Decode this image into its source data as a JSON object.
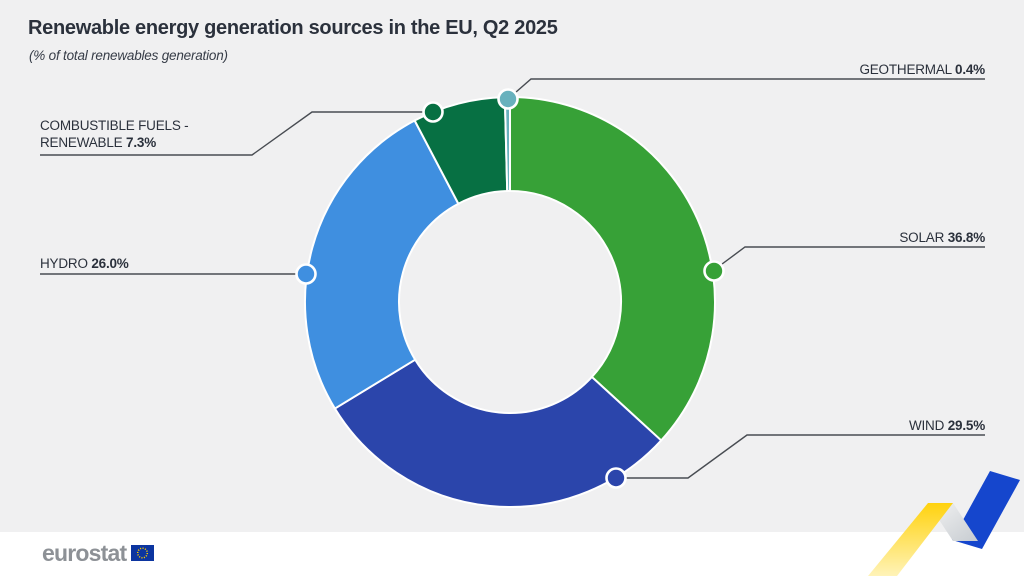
{
  "title": "Renewable energy generation sources in the EU, Q2 2025",
  "subtitle": "(% of total renewables generation)",
  "logo": {
    "text": "eurostat"
  },
  "chart_data": {
    "type": "pie",
    "donut": true,
    "title": "Renewable energy generation sources in the EU, Q2 2025",
    "units": "% of total renewables generation",
    "start_angle_deg": 0,
    "direction": "clockwise",
    "slices": [
      {
        "id": "solar",
        "label": "SOLAR",
        "value": 36.8,
        "display": "36.8%",
        "color": "#37a137"
      },
      {
        "id": "wind",
        "label": "WIND",
        "value": 29.5,
        "display": "29.5%",
        "color": "#2b45ab"
      },
      {
        "id": "hydro",
        "label": "HYDRO",
        "value": 26.0,
        "display": "26.0%",
        "color": "#3f8fe0"
      },
      {
        "id": "combustible",
        "label": "COMBUSTIBLE FUELS - RENEWABLE",
        "label_line1": "COMBUSTIBLE FUELS -",
        "label_line2": "RENEWABLE",
        "value": 7.3,
        "display": "7.3%",
        "color": "#077043"
      },
      {
        "id": "geothermal",
        "label": "GEOTHERMAL",
        "value": 0.4,
        "display": "0.4%",
        "color": "#68b1bd"
      }
    ],
    "callout_line_color": "#484c52",
    "background_color": "#f0f0f1",
    "flag_blue": "#0c35a0",
    "flag_star_yellow": "#ffcc00"
  }
}
